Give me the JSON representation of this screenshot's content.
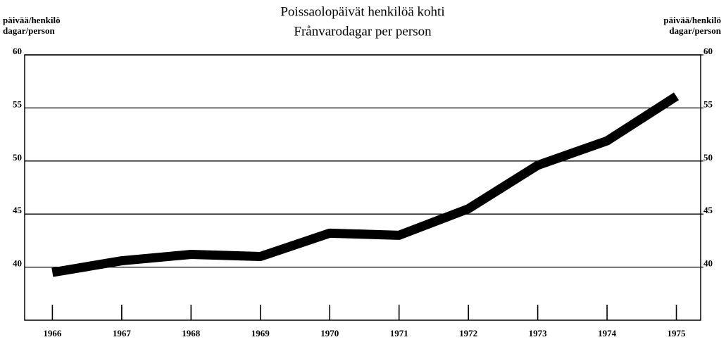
{
  "chart_data": {
    "type": "line",
    "title": [
      "Poissaolopäivät henkilöä kohti",
      "Frånvarodagar per person"
    ],
    "y_label": [
      "päivää/henkilö",
      "dagar/person"
    ],
    "y2_label": [
      "päivää/henkilö",
      "dagar/person"
    ],
    "x": [
      1966,
      1967,
      1968,
      1969,
      1970,
      1971,
      1972,
      1973,
      1974,
      1975
    ],
    "series": [
      {
        "color": "#000000",
        "values": [
          39.5,
          40.6,
          41.2,
          41.0,
          43.2,
          43.0,
          45.5,
          49.6,
          51.9,
          56.1
        ]
      }
    ],
    "xlim": [
      1965.6,
      1975.35
    ],
    "xticks": [
      1966,
      1967,
      1968,
      1969,
      1970,
      1971,
      1972,
      1973,
      1974,
      1975
    ],
    "ylim": [
      35,
      60
    ],
    "yticks": [
      40,
      45,
      50,
      55,
      60
    ],
    "y2lim": [
      35,
      60
    ],
    "y2ticks": [
      40,
      45,
      50,
      55,
      60
    ],
    "grid": true
  }
}
